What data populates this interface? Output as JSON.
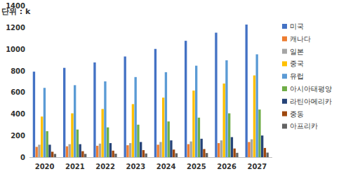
{
  "chart_data": {
    "type": "bar",
    "y_label": "단위 : k",
    "categories": [
      "2020",
      "2021",
      "2022",
      "2023",
      "2024",
      "2025",
      "2026",
      "2027"
    ],
    "series": [
      {
        "name": "미국",
        "color": "#4472c4",
        "values": [
          790,
          825,
          875,
          930,
          1000,
          1075,
          1150,
          1225
        ]
      },
      {
        "name": "캐나다",
        "color": "#ed7d31",
        "values": [
          95,
          100,
          105,
          110,
          115,
          120,
          130,
          140
        ]
      },
      {
        "name": "일본",
        "color": "#a5a5a5",
        "values": [
          115,
          120,
          125,
          130,
          140,
          145,
          155,
          165
        ]
      },
      {
        "name": "중국",
        "color": "#ffc000",
        "values": [
          375,
          405,
          445,
          490,
          550,
          615,
          680,
          755
        ]
      },
      {
        "name": "유럽",
        "color": "#5b9bd5",
        "values": [
          640,
          665,
          700,
          740,
          785,
          845,
          895,
          950
        ]
      },
      {
        "name": "아시아태평양",
        "color": "#70ad47",
        "values": [
          240,
          255,
          275,
          300,
          330,
          365,
          405,
          440
        ]
      },
      {
        "name": "라틴아메리카",
        "color": "#264478",
        "values": [
          115,
          120,
          130,
          140,
          155,
          170,
          185,
          200
        ]
      },
      {
        "name": "중동",
        "color": "#9e480e",
        "values": [
          50,
          55,
          60,
          65,
          70,
          75,
          80,
          85
        ]
      },
      {
        "name": "아프리카",
        "color": "#636363",
        "values": [
          30,
          30,
          32,
          34,
          36,
          38,
          40,
          42
        ]
      }
    ],
    "ylim": [
      0,
      1400
    ],
    "yticks": [
      0,
      200,
      400,
      600,
      800,
      1000,
      1200,
      1400
    ],
    "grid": false,
    "legend": "right"
  }
}
